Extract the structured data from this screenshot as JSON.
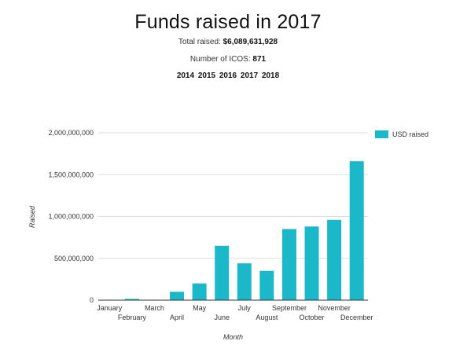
{
  "header": {
    "title": "Funds raised in 2017",
    "total_label": "Total raised:",
    "total_value": "$6,089,631,928",
    "icos_label": "Number of ICOS:",
    "icos_value": "871",
    "years": [
      "2014",
      "2015",
      "2016",
      "2017",
      "2018"
    ]
  },
  "chart_data": {
    "type": "bar",
    "categories": [
      "January",
      "February",
      "March",
      "April",
      "May",
      "June",
      "July",
      "August",
      "September",
      "October",
      "November",
      "December"
    ],
    "series": [
      {
        "name": "USD raised",
        "color": "#1ab8c8",
        "values": [
          5000000,
          15000000,
          5000000,
          100000000,
          200000000,
          650000000,
          440000000,
          350000000,
          850000000,
          880000000,
          960000000,
          1660000000
        ]
      }
    ],
    "xlabel": "Month",
    "ylabel": "Raised",
    "ylim": [
      0,
      2000000000
    ],
    "yticks": [
      0,
      500000000,
      1000000000,
      1500000000,
      2000000000
    ],
    "ytick_labels": [
      "0",
      "500,000,000",
      "1,000,000,000",
      "1,500,000,000",
      "2,000,000,000"
    ],
    "grid": true,
    "legend": "top-right"
  }
}
